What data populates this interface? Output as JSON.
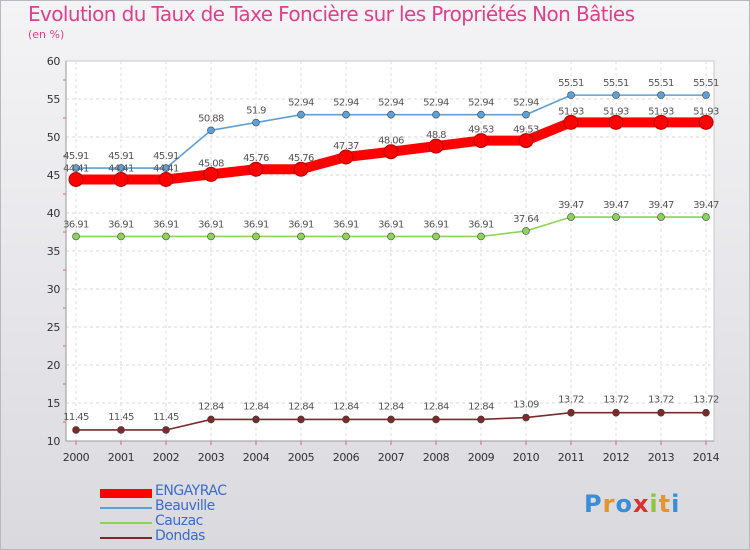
{
  "title": "Evolution du Taux de Taxe Foncière sur les Propriétés Non Bâties",
  "unit": "(en %)",
  "logo": {
    "text": "Proxiti",
    "letters": [
      "P",
      "r",
      "o",
      "x",
      "i",
      "t",
      "i"
    ],
    "colors": [
      "#3a8ed8",
      "#e8942a",
      "#3a8ed8",
      "#d8342a",
      "#8cc63e",
      "#e8942a",
      "#3a8ed8"
    ]
  },
  "chart_data": {
    "type": "line",
    "title": "Evolution du Taux de Taxe Foncière sur les Propriétés Non Bâties",
    "xlabel": "",
    "ylabel": "(en %)",
    "ylim": [
      10,
      60
    ],
    "yticks": [
      10,
      15,
      20,
      25,
      30,
      35,
      40,
      45,
      50,
      55,
      60
    ],
    "grid": true,
    "legend_position": "bottom-left",
    "x": [
      "2000",
      "2001",
      "2002",
      "2003",
      "2004",
      "2005",
      "2006",
      "2007",
      "2008",
      "2009",
      "2010",
      "2011",
      "2012",
      "2013",
      "2014"
    ],
    "series": [
      {
        "name": "ENGAYRAC",
        "color": "#ff0000",
        "emphasis": true,
        "values": [
          44.41,
          44.41,
          44.41,
          45.08,
          45.76,
          45.76,
          47.37,
          48.06,
          48.8,
          49.53,
          49.53,
          51.93,
          51.93,
          51.93,
          51.93
        ],
        "labels": [
          "44.41",
          "44.41",
          "44.41",
          "45.08",
          "45.76",
          "45.76",
          "47.37",
          "48.06",
          "48.8",
          "49.53",
          "49.53",
          "51.93",
          "51.93",
          "51.93",
          "51.93"
        ]
      },
      {
        "name": "Beauville",
        "color": "#5d9fd6",
        "values": [
          45.91,
          45.91,
          45.91,
          50.88,
          51.9,
          52.94,
          52.94,
          52.94,
          52.94,
          52.94,
          52.94,
          55.51,
          55.51,
          55.51,
          55.51
        ],
        "labels": [
          "45.91",
          "45.91",
          "45.91",
          "50.88",
          "51.9",
          "52.94",
          "52.94",
          "52.94",
          "52.94",
          "52.94",
          "52.94",
          "55.51",
          "55.51",
          "55.51",
          "55.51"
        ]
      },
      {
        "name": "Cauzac",
        "color": "#8cd35a",
        "values": [
          36.91,
          36.91,
          36.91,
          36.91,
          36.91,
          36.91,
          36.91,
          36.91,
          36.91,
          36.91,
          37.64,
          39.47,
          39.47,
          39.47,
          39.47
        ],
        "labels": [
          "36.91",
          "36.91",
          "36.91",
          "36.91",
          "36.91",
          "36.91",
          "36.91",
          "36.91",
          "36.91",
          "36.91",
          "37.64",
          "39.47",
          "39.47",
          "39.47",
          "39.47"
        ]
      },
      {
        "name": "Dondas",
        "color": "#7a2a2a",
        "values": [
          11.45,
          11.45,
          11.45,
          12.84,
          12.84,
          12.84,
          12.84,
          12.84,
          12.84,
          12.84,
          13.09,
          13.72,
          13.72,
          13.72,
          13.72
        ],
        "labels": [
          "11.45",
          "11.45",
          "11.45",
          "12.84",
          "12.84",
          "12.84",
          "12.84",
          "12.84",
          "12.84",
          "12.84",
          "13.09",
          "13.72",
          "13.72",
          "13.72",
          "13.72"
        ]
      }
    ]
  }
}
